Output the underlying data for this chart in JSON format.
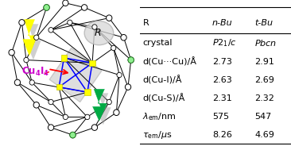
{
  "table_headers": [
    "R",
    "n-Bu",
    "t-Bu"
  ],
  "table_rows": [
    [
      "crystal",
      "P2_1/c",
      "Pbcn"
    ],
    [
      "d(Cu⋯Cu)/Å",
      "2.73",
      "2.91"
    ],
    [
      "d(Cu-I)/Å",
      "2.63",
      "2.69"
    ],
    [
      "d(Cu-S)/Å",
      "2.31",
      "2.32"
    ],
    [
      "λ_em/nm",
      "575",
      "547"
    ],
    [
      "τ_em/μs",
      "8.26",
      "4.69"
    ]
  ],
  "bg_color": "#ffffff",
  "figsize": [
    3.66,
    1.89
  ],
  "dpi": 100
}
